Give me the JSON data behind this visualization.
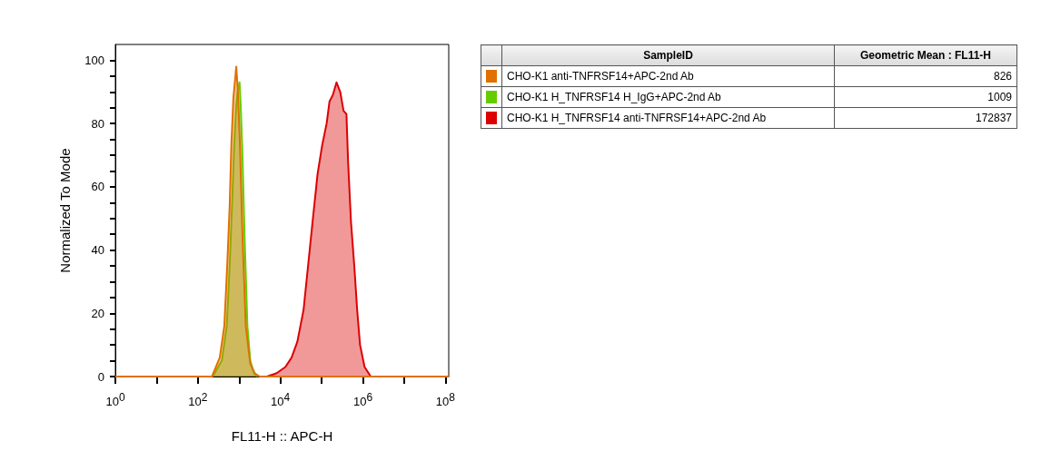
{
  "chart_data": {
    "type": "area",
    "xlabel": "FL11-H :: APC-H",
    "ylabel": "Normalized To Mode",
    "log": "x",
    "xlim": [
      1,
      120000000
    ],
    "xticks": [
      {
        "value": 1,
        "label": "10$^{0}$"
      },
      {
        "value": 10,
        "label": null
      },
      {
        "value": 100,
        "label": "10$^{2}$"
      },
      {
        "value": 1000,
        "label": null
      },
      {
        "value": 10000,
        "label": "10$^{4}$"
      },
      {
        "value": 100000,
        "label": null
      },
      {
        "value": 1000000,
        "label": "10$^{6}$"
      },
      {
        "value": 10000000,
        "label": null
      },
      {
        "value": 100000000,
        "label": "10$^{8}$"
      }
    ],
    "ylim": [
      0,
      105
    ],
    "yticks": [
      0,
      {
        "value": 5,
        "label": null
      },
      {
        "value": 10,
        "label": null
      },
      {
        "value": 15,
        "label": null
      },
      20,
      {
        "value": 25,
        "label": null
      },
      {
        "value": 30,
        "label": null
      },
      {
        "value": 35,
        "label": null
      },
      40,
      {
        "value": 45,
        "label": null
      },
      {
        "value": 50,
        "label": null
      },
      {
        "value": 55,
        "label": null
      },
      60,
      {
        "value": 65,
        "label": null
      },
      {
        "value": 70,
        "label": null
      },
      {
        "value": 75,
        "label": null
      },
      80,
      {
        "value": 85,
        "label": null
      },
      {
        "value": 90,
        "label": null
      },
      {
        "value": 95,
        "label": null
      },
      100
    ],
    "grid": false,
    "legend": "top right",
    "legend_title": "SampleID",
    "annotations": [
      "Geometric Mean : FL11-H",
      "826",
      "1009",
      "172837"
    ],
    "series": [
      {
        "name": "CHO-K1 anti-TNFRSF14+APC-2nd Ab",
        "color": "#e07000",
        "x": [
          1,
          219,
          339,
          437,
          513,
          589,
          646,
          724,
          851,
          933,
          1047,
          1202,
          1445,
          1862,
          2399,
          3162,
          120000000
        ],
        "values": [
          0,
          0,
          6,
          16,
          35,
          54,
          73,
          88,
          98,
          90,
          73,
          45,
          16,
          4,
          1,
          0,
          0
        ]
      },
      {
        "name": "CHO-K1 H_TNFRSF14 H_IgG+APC-2nd Ab",
        "color": "#66cc00",
        "x": [
          229,
          380,
          501,
          589,
          676,
          759,
          851,
          933,
          1023,
          1096,
          1202,
          1349,
          1585,
          1862,
          2291,
          2818
        ],
        "values": [
          0,
          5,
          16,
          35,
          55,
          73,
          86,
          91,
          93,
          85,
          70,
          45,
          16,
          5,
          1,
          0
        ]
      },
      {
        "name": "CHO-K1 H_TNFRSF14 anti-TNFRSF14+APC-2nd Ab",
        "color": "#dd0000",
        "x": [
          4677,
          7943,
          13183,
          18621,
          25704,
          36308,
          46774,
          60256,
          79433,
          102329,
          131826,
          154882,
          186209,
          229087,
          281838,
          338844,
          398107,
          436516,
          512861,
          616595,
          724436,
          851138,
          1096478,
          1548817
        ],
        "values": [
          0,
          1,
          3,
          6,
          11,
          21,
          35,
          49,
          64,
          73,
          80,
          87,
          89,
          93,
          90,
          84,
          83,
          68,
          49,
          35,
          21,
          10,
          3,
          0
        ]
      }
    ]
  }
}
